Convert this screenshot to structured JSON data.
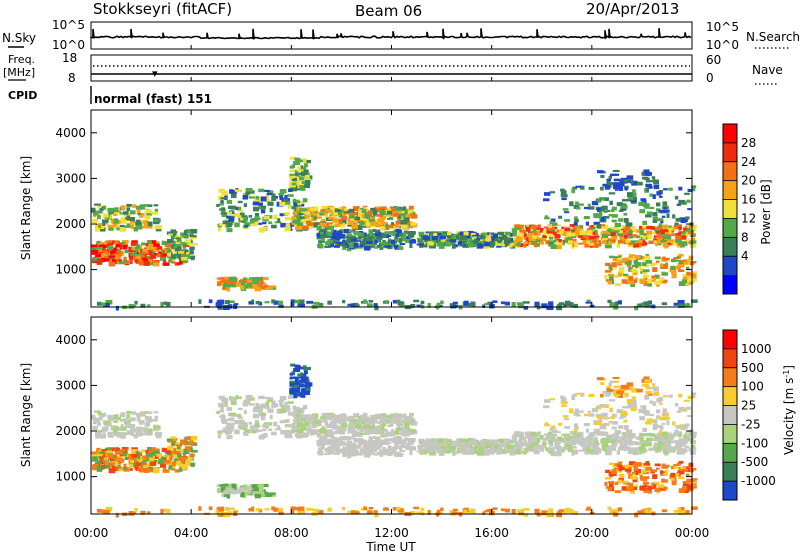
{
  "header": {
    "station": "Stokkseyri (fitACF)",
    "beam": "Beam 06",
    "date": "20/Apr/2013"
  },
  "noise_panel": {
    "left_label": "N.Sky",
    "right_label": "N.Search",
    "left_ticks": [
      "10^5",
      "10^0"
    ],
    "right_ticks": [
      "10^5",
      "10^0"
    ]
  },
  "freq_panel": {
    "left_label_top": "Freq.",
    "left_label_bottom": "[MHz]",
    "left_ticks": [
      "18",
      "8"
    ],
    "right_label": "Nave",
    "right_ticks": [
      "60",
      "0"
    ]
  },
  "cpid": {
    "label": "CPID",
    "value": "normal (fast) 151"
  },
  "colors": {
    "power_scale": [
      "#0000ff",
      "#1f47c8",
      "#3a7e5a",
      "#53a84a",
      "#f0e03a",
      "#f5a21a",
      "#f36f18",
      "#ee2c12",
      "#ff0000"
    ],
    "velocity_scale": [
      "#1c48c9",
      "#3a7e5a",
      "#56a64b",
      "#a7d37a",
      "#c7c7c2",
      "#f7cc2c",
      "#f57c18",
      "#ef4510",
      "#ff0000"
    ]
  },
  "chart_data": [
    {
      "type": "heatmap",
      "name_role": "power-panel",
      "xlabel": "Time UT",
      "ylabel": "Slant Range [km]",
      "x_ticks": [
        "00:00",
        "04:00",
        "08:00",
        "12:00",
        "16:00",
        "20:00",
        "00:00"
      ],
      "x_range_hours": [
        0,
        24
      ],
      "y_ticks": [
        4000,
        3000,
        2000,
        1000
      ],
      "ylim": [
        180,
        4500
      ],
      "colorbar_label": "Power [dB]",
      "colorbar_ticks": [
        "28",
        "24",
        "20",
        "16",
        "12",
        "8",
        "4"
      ],
      "colorbar_range": [
        0,
        32
      ]
    },
    {
      "type": "heatmap",
      "name_role": "velocity-panel",
      "xlabel": "Time UT",
      "ylabel": "Slant Range [km]",
      "x_ticks": [
        "00:00",
        "04:00",
        "08:00",
        "12:00",
        "16:00",
        "20:00",
        "00:00"
      ],
      "x_range_hours": [
        0,
        24
      ],
      "y_ticks": [
        4000,
        3000,
        2000,
        1000
      ],
      "ylim": [
        180,
        4500
      ],
      "colorbar_label": "Velocity [m s^-1]",
      "colorbar_ticks": [
        "1000",
        "500",
        "100",
        "25",
        "-25",
        "-100",
        "-500",
        "-1000"
      ]
    }
  ]
}
